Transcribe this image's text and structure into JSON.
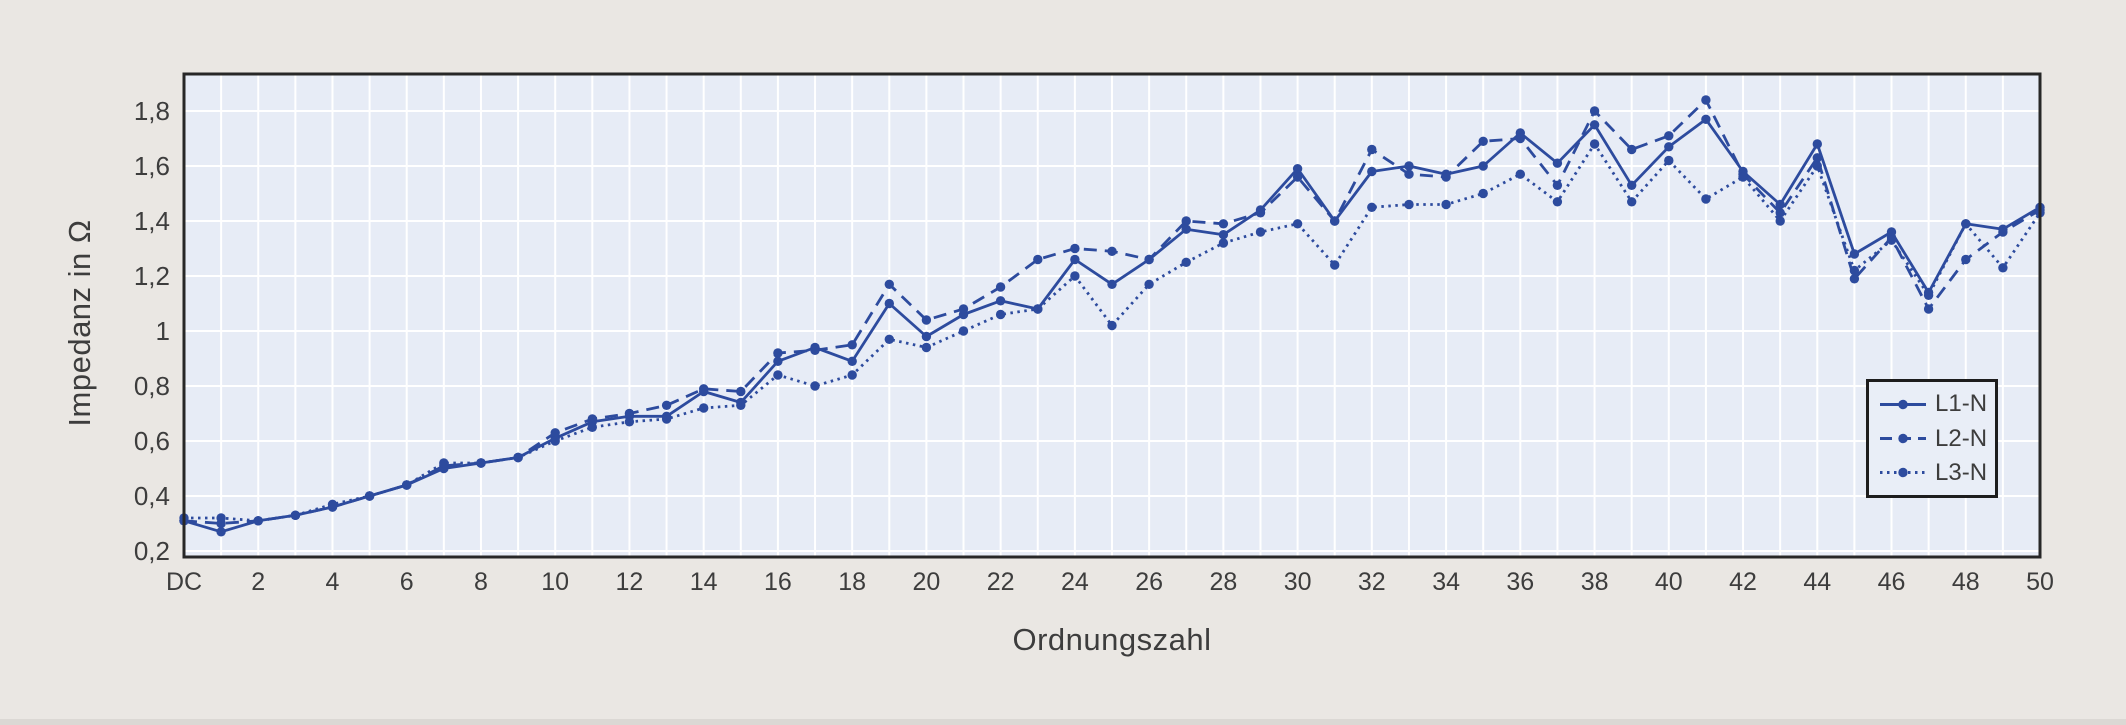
{
  "chart_data": {
    "type": "line",
    "title": "",
    "xlabel": "Ordnungszahl",
    "ylabel": "Impedanz in Ω",
    "x_axis": {
      "start_label": "DC",
      "min": 0,
      "max": 50,
      "step": 1,
      "tick_step": 2,
      "note": "harmonic order; DC = order 0"
    },
    "x_tick_labels": [
      "DC",
      "2",
      "4",
      "6",
      "8",
      "10",
      "12",
      "14",
      "16",
      "18",
      "20",
      "22",
      "24",
      "26",
      "28",
      "30",
      "32",
      "34",
      "36",
      "38",
      "40",
      "42",
      "44",
      "46",
      "48",
      "50"
    ],
    "y_tick_labels": [
      "0,2",
      "0,4",
      "0,6",
      "0,8",
      "1",
      "1,2",
      "1,4",
      "1,6",
      "1,8"
    ],
    "y_tick_values": [
      0.2,
      0.4,
      0.6,
      0.8,
      1.0,
      1.2,
      1.4,
      1.6,
      1.8
    ],
    "ylim": [
      0.17,
      1.92
    ],
    "grid": "white gridlines, vertical every 1 order, horizontal every 0.2 Ω",
    "legend_position": "inside lower right, framed box",
    "series": [
      {
        "name": "L1-N",
        "line_style": "solid",
        "values": [
          0.31,
          0.27,
          0.31,
          0.33,
          0.36,
          0.4,
          0.44,
          0.5,
          0.52,
          0.54,
          0.61,
          0.67,
          0.69,
          0.69,
          0.78,
          0.74,
          0.89,
          0.94,
          0.89,
          1.1,
          0.98,
          1.06,
          1.11,
          1.08,
          1.26,
          1.17,
          1.26,
          1.37,
          1.35,
          1.44,
          1.59,
          1.4,
          1.58,
          1.6,
          1.57,
          1.6,
          1.72,
          1.61,
          1.75,
          1.53,
          1.67,
          1.77,
          1.58,
          1.46,
          1.68,
          1.28,
          1.36,
          1.14,
          1.39,
          1.37,
          1.45
        ]
      },
      {
        "name": "L2-N",
        "line_style": "dashed",
        "values": [
          0.31,
          0.3,
          0.31,
          0.33,
          0.36,
          0.4,
          0.44,
          0.51,
          0.52,
          0.54,
          0.63,
          0.68,
          0.7,
          0.73,
          0.79,
          0.78,
          0.92,
          0.93,
          0.95,
          1.17,
          1.04,
          1.08,
          1.16,
          1.26,
          1.3,
          1.29,
          1.26,
          1.4,
          1.39,
          1.43,
          1.56,
          1.4,
          1.66,
          1.57,
          1.56,
          1.69,
          1.7,
          1.53,
          1.8,
          1.66,
          1.71,
          1.84,
          1.57,
          1.43,
          1.63,
          1.19,
          1.34,
          1.08,
          1.26,
          1.36,
          1.44
        ]
      },
      {
        "name": "L3-N",
        "line_style": "dotted",
        "values": [
          0.32,
          0.32,
          0.31,
          0.33,
          0.37,
          0.4,
          0.44,
          0.52,
          0.52,
          0.54,
          0.6,
          0.65,
          0.67,
          0.68,
          0.72,
          0.73,
          0.84,
          0.8,
          0.84,
          0.97,
          0.94,
          1.0,
          1.06,
          1.08,
          1.2,
          1.02,
          1.17,
          1.25,
          1.32,
          1.36,
          1.39,
          1.24,
          1.45,
          1.46,
          1.46,
          1.5,
          1.57,
          1.47,
          1.68,
          1.47,
          1.62,
          1.48,
          1.56,
          1.4,
          1.6,
          1.22,
          1.33,
          1.13,
          1.39,
          1.23,
          1.43
        ]
      }
    ],
    "colors": {
      "series": "#2d4b9e",
      "plot_background": "#e7ecf6",
      "page_background": "#eae7e3",
      "gridline": "#ffffff",
      "plot_border": "#272727",
      "text": "#3d3d3d",
      "legend_background": "#e9eef7",
      "legend_border": "#1d1d1d"
    }
  }
}
